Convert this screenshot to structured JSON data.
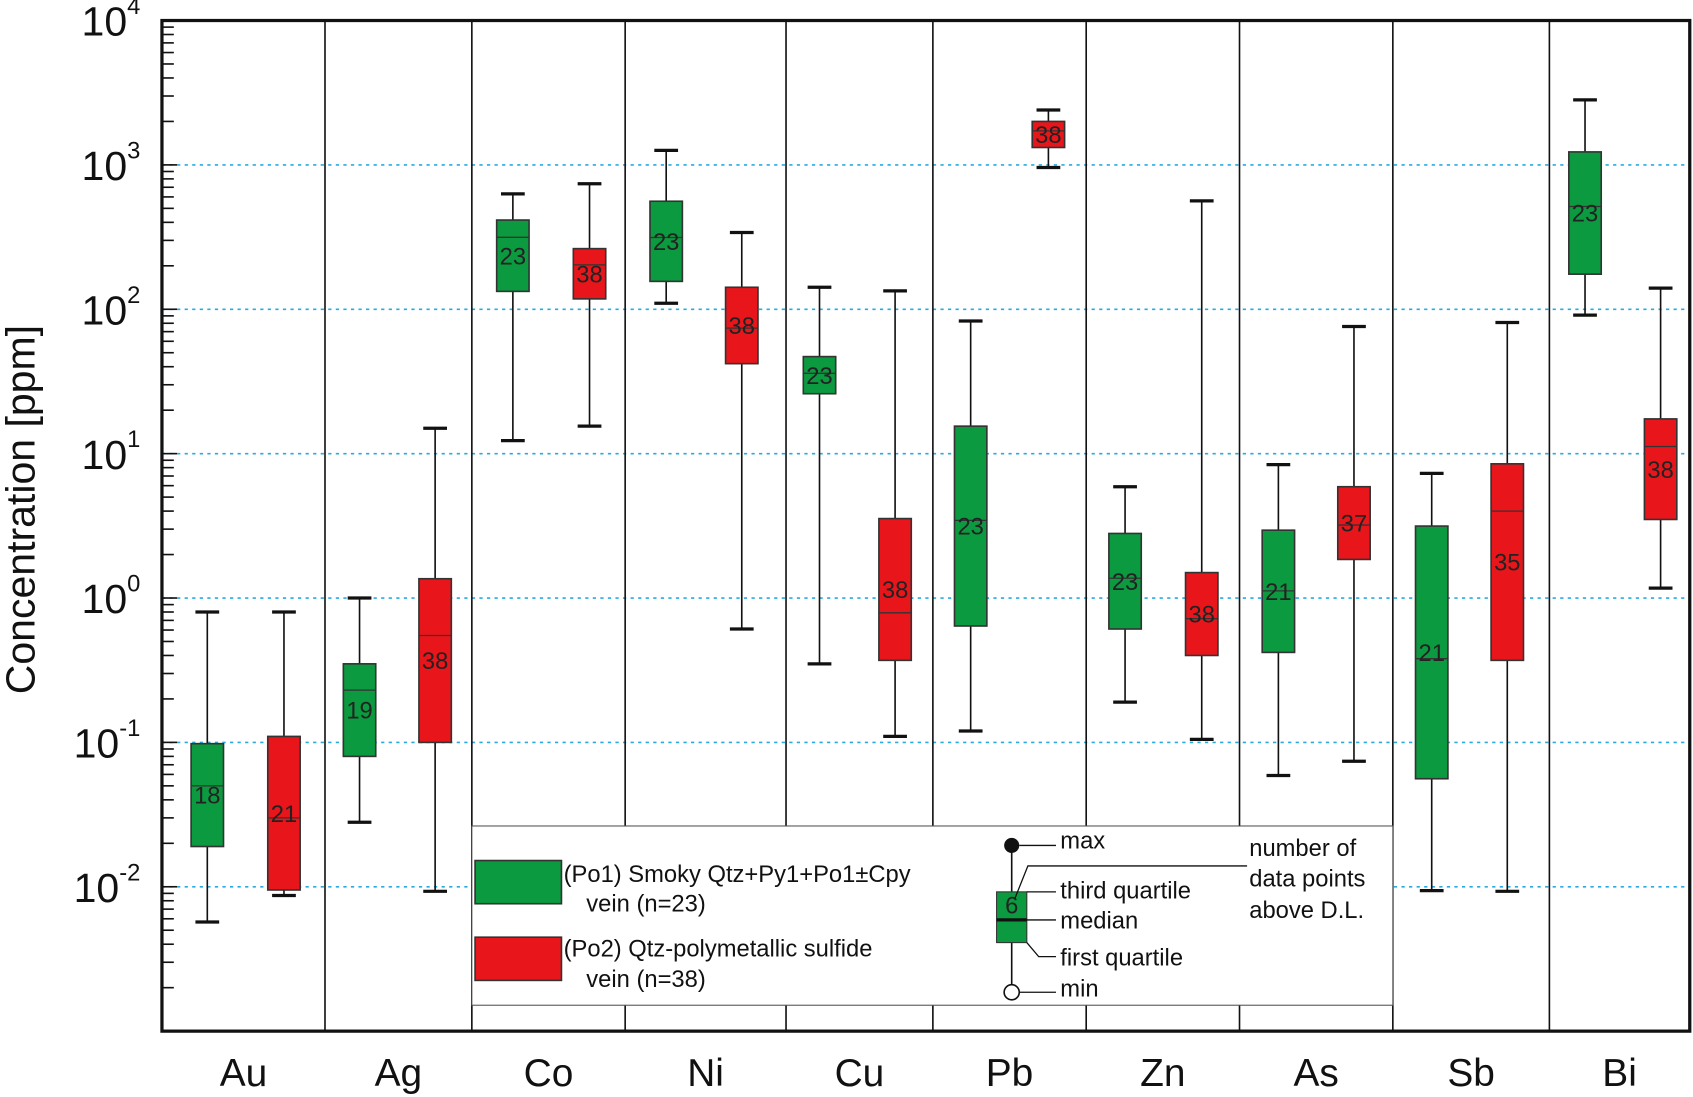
{
  "chart_data": {
    "type": "boxplot",
    "ylabel": "Concentration [ppm]",
    "yscale": "log",
    "ylim": [
      0.001,
      10000
    ],
    "ytick_exponents": [
      -2,
      -1,
      0,
      1,
      2,
      3,
      4
    ],
    "ytick_base": "10",
    "grid": "horizontal dotted at decades",
    "categories": [
      "Au",
      "Ag",
      "Co",
      "Ni",
      "Cu",
      "Pb",
      "Zn",
      "As",
      "Sb",
      "Bi"
    ],
    "series": [
      {
        "name": "(Po1) Smoky Qtz+Py1+Po1±Cpy vein (n=23)",
        "color": "#0b9a3f",
        "boxes": [
          {
            "min": 0.0057,
            "q1": 0.019,
            "median": 0.05,
            "q3": 0.098,
            "max": 0.8,
            "n": "18"
          },
          {
            "min": 0.028,
            "q1": 0.08,
            "median": 0.23,
            "q3": 0.35,
            "max": 1.0,
            "n": "19"
          },
          {
            "min": 12.3,
            "q1": 133,
            "median": 315,
            "q3": 415,
            "max": 630,
            "n": "23"
          },
          {
            "min": 110,
            "q1": 156,
            "median": 314,
            "q3": 560,
            "max": 1260,
            "n": "23"
          },
          {
            "min": 0.35,
            "q1": 26,
            "median": 36,
            "q3": 47,
            "max": 142,
            "n": "23"
          },
          {
            "min": 0.12,
            "q1": 0.64,
            "median": 3.45,
            "q3": 15.5,
            "max": 83,
            "n": "23"
          },
          {
            "min": 0.19,
            "q1": 0.61,
            "median": 1.37,
            "q3": 2.8,
            "max": 5.9,
            "n": "23"
          },
          {
            "min": 0.059,
            "q1": 0.42,
            "median": 1.12,
            "q3": 2.95,
            "max": 8.4,
            "n": "21"
          },
          {
            "min": 0.0094,
            "q1": 0.056,
            "median": 0.38,
            "q3": 3.15,
            "max": 7.3,
            "n": "21"
          },
          {
            "min": 91,
            "q1": 175,
            "median": 515,
            "q3": 1230,
            "max": 2820,
            "n": "23"
          }
        ]
      },
      {
        "name": "(Po2) Qtz-polymetallic sulfide vein (n=38)",
        "color": "#e8161b",
        "boxes": [
          {
            "min": 0.0087,
            "q1": 0.0095,
            "median": 0.03,
            "q3": 0.11,
            "max": 0.8,
            "n": "21"
          },
          {
            "min": 0.0093,
            "q1": 0.1,
            "median": 0.55,
            "q3": 1.36,
            "max": 15,
            "n": "38"
          },
          {
            "min": 15.5,
            "q1": 118,
            "median": 203,
            "q3": 263,
            "max": 740,
            "n": "38"
          },
          {
            "min": 0.61,
            "q1": 42,
            "median": 74,
            "q3": 142,
            "max": 340,
            "n": "38"
          },
          {
            "min": 0.11,
            "q1": 0.37,
            "median": 0.79,
            "q3": 3.55,
            "max": 134,
            "n": "38"
          },
          {
            "min": 960,
            "q1": 1320,
            "median": 1720,
            "q3": 2000,
            "max": 2400,
            "n": "38"
          },
          {
            "min": 0.105,
            "q1": 0.4,
            "median": 0.72,
            "q3": 1.5,
            "max": 563,
            "n": "38"
          },
          {
            "min": 0.074,
            "q1": 1.85,
            "median": 3.2,
            "q3": 5.9,
            "max": 76,
            "n": "37"
          },
          {
            "min": 0.0093,
            "q1": 0.37,
            "median": 4.0,
            "q3": 8.5,
            "max": 81,
            "n": "35"
          },
          {
            "min": 1.17,
            "q1": 3.5,
            "median": 11.2,
            "q3": 17.4,
            "max": 140,
            "n": "38"
          }
        ]
      }
    ],
    "legend": {
      "placement": "bottom-center",
      "entries": [
        {
          "line1": "(Po1) Smoky Qtz+Py1+Po1±Cpy",
          "line2": "vein (n=23)"
        },
        {
          "line1": "(Po2) Qtz-polymetallic sulfide",
          "line2": "vein (n=38)"
        }
      ],
      "key": {
        "sample_n": "6",
        "max": "max",
        "third_quartile": "third quartile",
        "median": "median",
        "first_quartile": "first quartile",
        "min": "min",
        "count_note": [
          "number of",
          "data points",
          "above D.L."
        ]
      }
    },
    "grid_color": "#29abe2"
  }
}
